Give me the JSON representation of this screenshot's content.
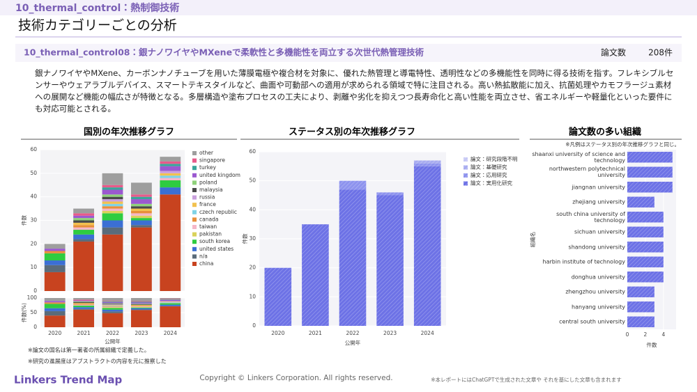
{
  "header": {
    "category": "10_thermal_control：熱制御技術",
    "title": "技術カテゴリーごとの分析",
    "topic": "10_thermal_control08：銀ナノワイヤやMXeneで柔軟性と多機能性を両立する次世代熱管理技術",
    "count_label": "論文数",
    "count": "208件"
  },
  "description": "銀ナノワイヤやMXene、カーボンナノチューブを用いた薄膜電極や複合材を対象に、優れた熱管理と導電特性、透明性などの多機能性を同時に得る技術を指す。フレキシブルセンサーやウェアラブルデバイス、スマートテキスタイルなど、曲面や可動部への適用が求められる領域で特に注目される。高い熱拡散能に加え、抗菌処理やカモフラージュ素材への展開など機能の幅広さが特徴となる。多層構造や塗布プロセスの工夫により、剥離や劣化を抑えつつ長寿命化と高い性能を両立させ、省エネルギーや軽量化といった要件にも対応可能とされる。",
  "chart_data": [
    {
      "type": "bar",
      "title": "国別の年次推移グラフ",
      "x_label": "公開年",
      "y_label": "件数",
      "categories": [
        "2020",
        "2021",
        "2022",
        "2023",
        "2024"
      ],
      "ylim": [
        0,
        60
      ],
      "yticks": [
        0,
        10,
        20,
        30,
        40,
        50,
        60
      ],
      "grid": true,
      "share_y_label": "件数(%)",
      "share_ylim": [
        0,
        100
      ],
      "share_yticks": [
        0,
        50,
        100
      ],
      "series": [
        {
          "name": "other",
          "color": "#9e9e9e",
          "values": [
            2,
            2,
            5,
            5,
            2
          ]
        },
        {
          "name": "singapore",
          "color": "#e85a8a",
          "values": [
            0,
            1,
            1,
            1,
            1
          ]
        },
        {
          "name": "turkey",
          "color": "#3aa59a",
          "values": [
            0,
            0,
            1,
            1,
            1
          ]
        },
        {
          "name": "united kingdom",
          "color": "#9b59d0",
          "values": [
            1,
            1,
            2,
            2,
            2
          ]
        },
        {
          "name": "poland",
          "color": "#8fd17a",
          "values": [
            0,
            1,
            1,
            1,
            0
          ]
        },
        {
          "name": "malaysia",
          "color": "#4a4a4a",
          "values": [
            0,
            1,
            1,
            1,
            0
          ]
        },
        {
          "name": "russia",
          "color": "#c9a0dc",
          "values": [
            0,
            0,
            1,
            0,
            1
          ]
        },
        {
          "name": "france",
          "color": "#f2c14e",
          "values": [
            0,
            1,
            1,
            1,
            1
          ]
        },
        {
          "name": "czech republic",
          "color": "#7fd3e6",
          "values": [
            0,
            0,
            1,
            0,
            1
          ]
        },
        {
          "name": "canada",
          "color": "#e88f3a",
          "values": [
            1,
            1,
            1,
            1,
            0
          ]
        },
        {
          "name": "taiwan",
          "color": "#f5b7c8",
          "values": [
            0,
            1,
            1,
            1,
            1
          ]
        },
        {
          "name": "pakistan",
          "color": "#d9d25a",
          "values": [
            0,
            0,
            1,
            1,
            0
          ]
        },
        {
          "name": "south korea",
          "color": "#2ecc40",
          "values": [
            3,
            2,
            3,
            1,
            3
          ]
        },
        {
          "name": "united states",
          "color": "#3b6fd4",
          "values": [
            2,
            2,
            3,
            2,
            3
          ]
        },
        {
          "name": "n/a",
          "color": "#5a6b7a",
          "values": [
            3,
            1,
            3,
            1,
            0
          ]
        },
        {
          "name": "china",
          "color": "#c8431f",
          "values": [
            8,
            21,
            24,
            27,
            41
          ]
        }
      ]
    },
    {
      "type": "bar",
      "title": "ステータス別の年次推移グラフ",
      "x_label": "公開年",
      "y_label": "件数",
      "categories": [
        "2020",
        "2021",
        "2022",
        "2023",
        "2024"
      ],
      "ylim": [
        0,
        60
      ],
      "yticks": [
        0,
        10,
        20,
        30,
        40,
        50,
        60
      ],
      "grid": true,
      "series": [
        {
          "name": "論文：研究段階不明",
          "color": "#c7c9f5",
          "values": [
            0,
            0,
            0,
            0,
            0
          ]
        },
        {
          "name": "論文：基礎研究",
          "color": "#a8acf0",
          "values": [
            0,
            0,
            0,
            0,
            1
          ]
        },
        {
          "name": "論文：応用研究",
          "color": "#8e93ee",
          "values": [
            0,
            0,
            3,
            1,
            1
          ]
        },
        {
          "name": "論文：実用化研究",
          "color": "#6d72e6",
          "values": [
            20,
            35,
            47,
            45,
            55
          ]
        }
      ]
    },
    {
      "type": "barh",
      "title": "論文数の多い組織",
      "note": "※凡例はステータス別の年次推移グラフと同じ。",
      "x_label": "件数",
      "y_label": "組織名",
      "color": "#6d72e6",
      "categories": [
        "shaanxi university of science and technology",
        "northwestern polytechnical university",
        "jiangnan university",
        "zhejiang university",
        "south china university of technology",
        "sichuan university",
        "shandong university",
        "harbin institute of technology",
        "donghua university",
        "zhengzhou university",
        "hanyang university",
        "central south university"
      ],
      "values": [
        5,
        5,
        5,
        3,
        4,
        4,
        4,
        4,
        4,
        3,
        3,
        3
      ],
      "xlim": [
        0,
        5.4
      ],
      "xticks": [
        0,
        2,
        4
      ],
      "grid": true
    }
  ],
  "notes": [
    "※論文の国名は第一著者の所属組織で定義した。",
    "※研究の進展度はアブストラクトの内容を元に推察した"
  ],
  "footer": {
    "brand": "Linkers Trend Map",
    "copyright": "Copyright © Linkers Corporation. All rights reserved.",
    "disclaimer": "※本レポートにはChatGPTで生成された文章や それを基にした文章も含まれます"
  }
}
